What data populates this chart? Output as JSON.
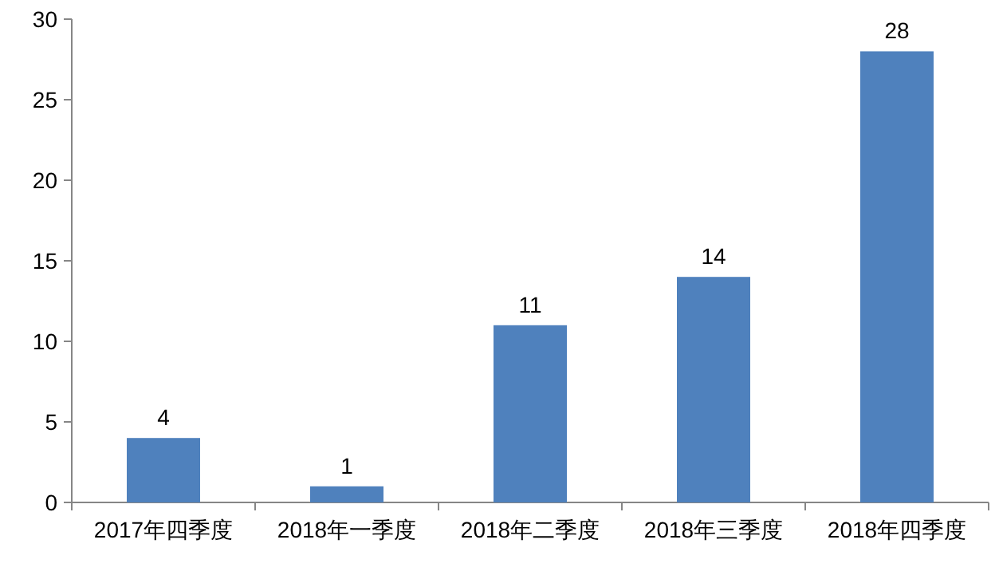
{
  "chart_data": {
    "type": "bar",
    "categories": [
      "2017年四季度",
      "2018年一季度",
      "2018年二季度",
      "2018年三季度",
      "2018年四季度"
    ],
    "values": [
      4,
      1,
      11,
      14,
      28
    ],
    "color": "#4f81bd",
    "ylim": [
      0,
      30
    ],
    "yticks": [
      0,
      5,
      10,
      15,
      20,
      25,
      30
    ],
    "grid": false,
    "data_labels": true
  }
}
